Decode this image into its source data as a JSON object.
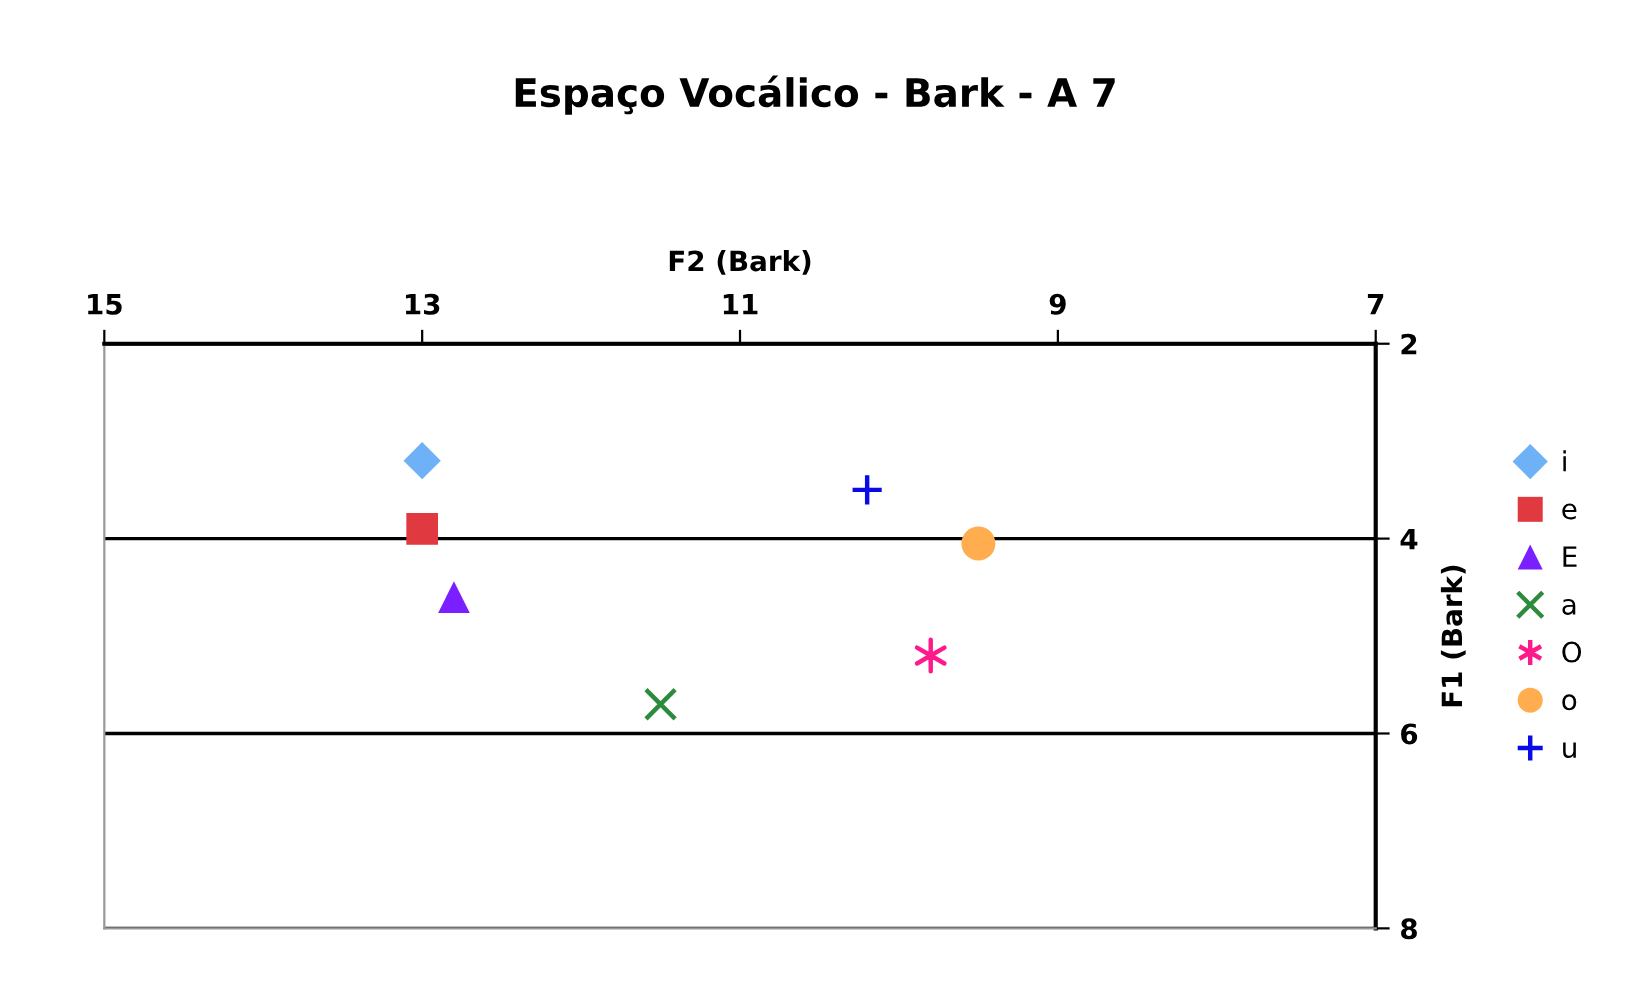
{
  "chart_data": {
    "type": "scatter",
    "title": "Espaço Vocálico - Bark - A 7",
    "xlabel": "F2 (Bark)",
    "ylabel": "F1 (Bark)",
    "xlim": [
      15,
      7
    ],
    "xticks": [
      15,
      13,
      11,
      9,
      7
    ],
    "ylim": [
      8,
      2
    ],
    "yticks": [
      2,
      4,
      6,
      8
    ],
    "grid": "y",
    "legend": "right",
    "series": [
      {
        "name": "i",
        "color": "#6fb1f7",
        "marker": "diamond",
        "x": [
          13.0
        ],
        "values": [
          3.2
        ]
      },
      {
        "name": "e",
        "color": "#e0393f",
        "marker": "square",
        "x": [
          13.0
        ],
        "values": [
          3.9
        ]
      },
      {
        "name": "E",
        "color": "#7a1fff",
        "marker": "triangle",
        "x": [
          12.8
        ],
        "values": [
          4.6
        ]
      },
      {
        "name": "a",
        "color": "#2e8b3e",
        "marker": "cross",
        "x": [
          11.5
        ],
        "values": [
          5.7
        ]
      },
      {
        "name": "O",
        "color": "#ff1a8c",
        "x": [
          9.8
        ],
        "values": [
          5.2
        ]
      },
      {
        "name": "o",
        "color": "#ffad4f",
        "marker": "circle",
        "x": [
          9.5
        ],
        "values": [
          4.05
        ]
      },
      {
        "name": "u",
        "color": "#0a0ae6",
        "marker": "plus",
        "x": [
          10.2
        ],
        "values": [
          3.5
        ]
      }
    ]
  }
}
